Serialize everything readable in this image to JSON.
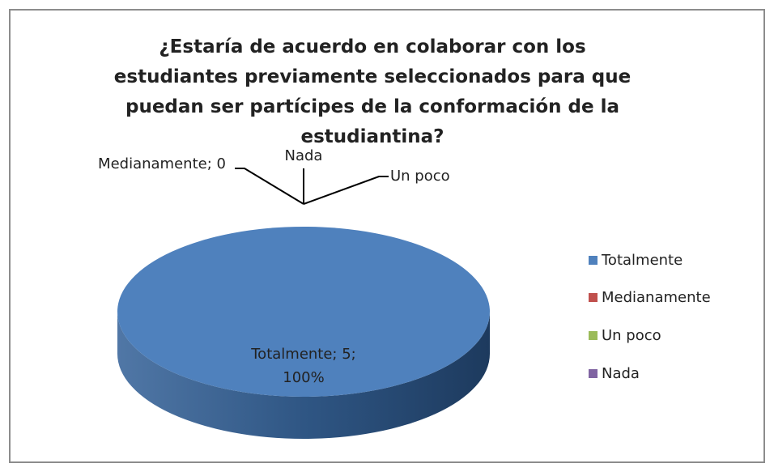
{
  "chart_data": {
    "type": "pie",
    "title": "¿Estaría de acuerdo en colaborar con los estudiantes previamente seleccionados para que puedan ser partícipes de la conformación de la estudiantina?",
    "categories": [
      "Totalmente",
      "Medianamente",
      "Un poco",
      "Nada"
    ],
    "values": [
      5,
      0,
      0,
      0
    ],
    "value_labels": [
      "Totalmente; 5; 100%",
      "Medianamente; 0",
      "Un poco",
      "Nada"
    ],
    "colors": [
      "#4f81bd",
      "#c0504d",
      "#9bbb59",
      "#8064a2"
    ],
    "legend": "right",
    "three_d": true
  }
}
